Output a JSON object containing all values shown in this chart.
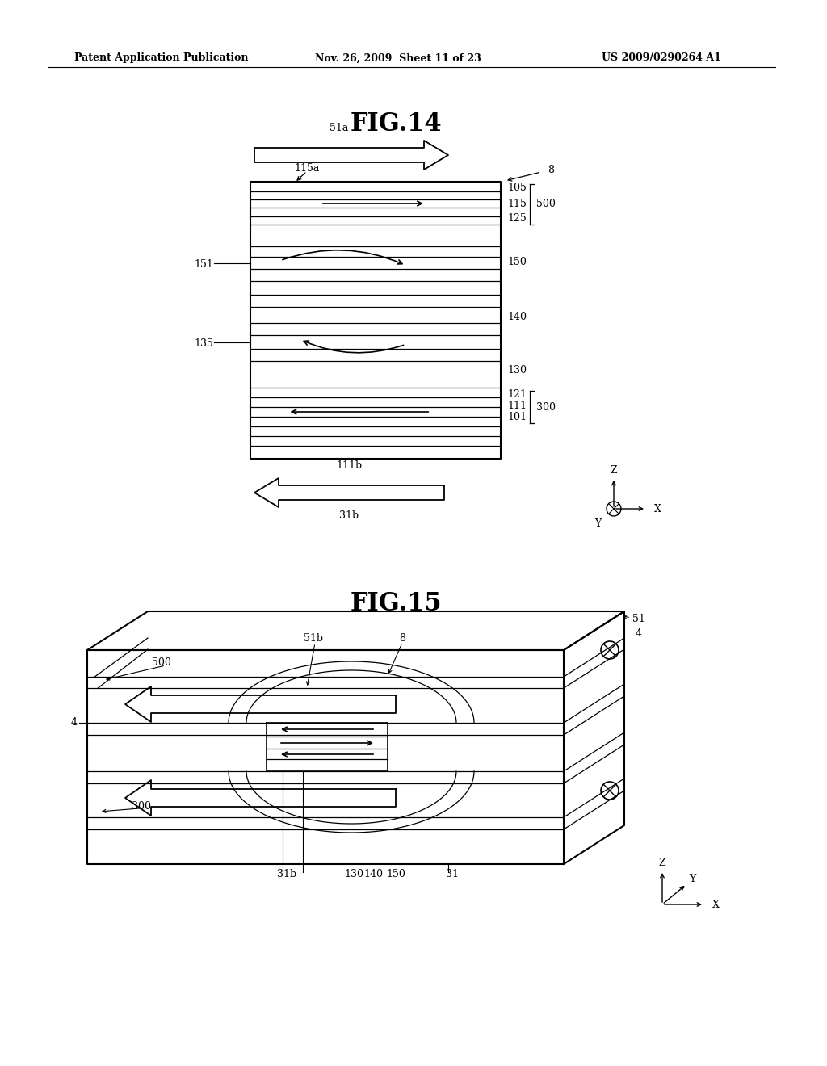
{
  "bg_color": "#ffffff",
  "header_text": "Patent Application Publication",
  "header_date": "Nov. 26, 2009  Sheet 11 of 23",
  "header_patent": "US 2009/0290264 A1",
  "fig14_title": "FIG.14",
  "fig15_title": "FIG.15"
}
